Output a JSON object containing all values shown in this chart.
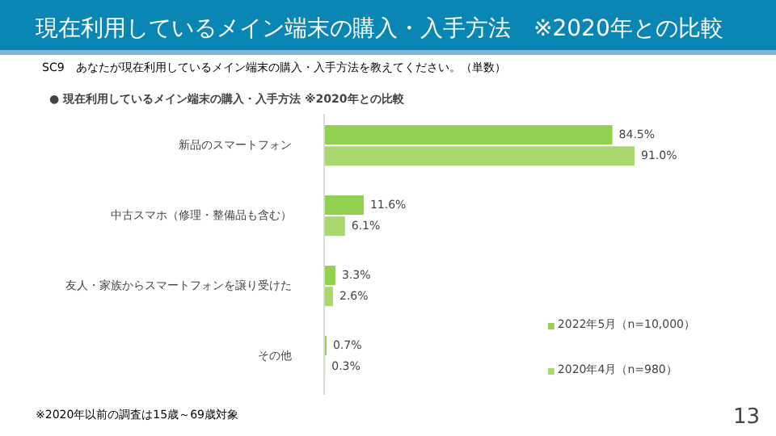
{
  "chart_data": {
    "type": "bar",
    "orientation": "horizontal",
    "title": "現在利用しているメイン端末の購入・入手方法　※2020年との比較",
    "subtitle": "SC9　あなたが現在利用しているメイン端末の購入・入手方法を教えてください。（単数）",
    "categories": [
      "新品のスマートフォン",
      "中古スマホ（修理・整備品も含む）",
      "友人・家族からスマートフォンを譲り受けた",
      "その他"
    ],
    "series": [
      {
        "name": "2022年5月（n=10,000）",
        "color": "#92d050",
        "values": [
          84.5,
          11.6,
          3.3,
          0.7
        ],
        "value_labels": [
          "84.5%",
          "11.6%",
          "3.3%",
          "0.7%"
        ]
      },
      {
        "name": "2020年4月（n=980）",
        "color": "#a9d86e",
        "values": [
          91.0,
          6.1,
          2.6,
          0.3
        ],
        "value_labels": [
          "91.0%",
          "6.1%",
          "2.6%",
          "0.3%"
        ]
      }
    ],
    "legend": "bottom right",
    "grid": false,
    "annotations": [
      "●  現在利用しているメイン端末の購入・入手方法 ※2020年との比較",
      "※2020年以前の調査は15歳～69歳対象",
      "13"
    ]
  }
}
